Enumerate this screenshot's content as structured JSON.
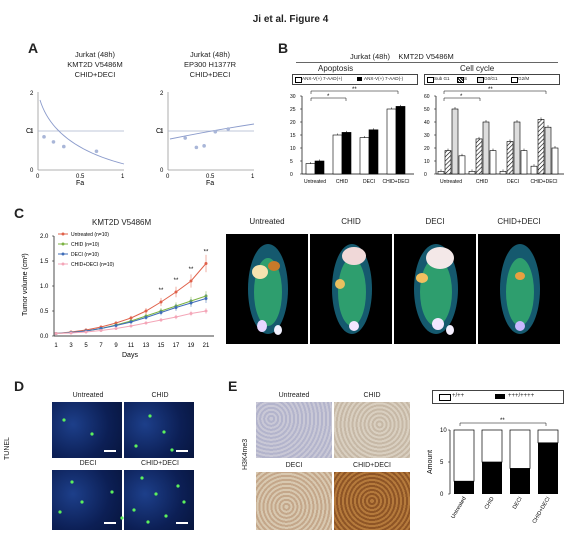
{
  "figure_title": "Ji et al. Figure 4",
  "panels": {
    "A": "A",
    "B": "B",
    "C": "C",
    "D": "D",
    "E": "E"
  },
  "panelA": {
    "left": {
      "line1": "Jurkat (48h)",
      "line2": "KMT2D V5486M",
      "line3": "CHID+DECI",
      "ylabel": "CI",
      "xlabel": "Fa",
      "yticks": [
        "0",
        "1",
        "2"
      ],
      "xticks": [
        "0",
        "0.5",
        "1"
      ]
    },
    "right": {
      "line1": "Jurkat (48h)",
      "line2": "EP300 H1377R",
      "line3": "CHID+DECI",
      "ylabel": "CI",
      "xlabel": "Fa",
      "yticks": [
        "0",
        "1",
        "2"
      ],
      "xticks": [
        "0",
        "0.5",
        "1"
      ]
    }
  },
  "panelB": {
    "header": "Jurkat (48h)    KMT2D V5486M",
    "apoptosis": {
      "title": "Apoptosis",
      "legend": [
        "ANX-V(+) 7-AAD(+)",
        "ANX-V(+) 7-AAD(-)"
      ],
      "yticks": [
        "0",
        "5",
        "10",
        "15",
        "20",
        "25",
        "30"
      ],
      "categories": [
        "Untreated",
        "CHID",
        "DECI",
        "CHID+DECI"
      ],
      "sig": [
        "*",
        "**"
      ]
    },
    "cellcycle": {
      "title": "Cell cycle",
      "legend": [
        "Sub G1",
        "S",
        "G0/G1",
        "G2/M"
      ],
      "yticks": [
        "0",
        "10",
        "20",
        "30",
        "40",
        "50",
        "60"
      ],
      "categories": [
        "Untreated",
        "CHID",
        "DECI",
        "CHID+DECI"
      ],
      "sig": [
        "*",
        "**"
      ]
    }
  },
  "panelC": {
    "title": "KMT2D V5486M",
    "ylabel": "Tumor volume (cm³)",
    "xlabel": "Days",
    "legend": [
      "Untreated (n=10)",
      "CHID (n=10)",
      "DECI (n=10)",
      "CHID+DECI (n=10)"
    ],
    "pet_titles": [
      "Untreated",
      "CHID",
      "DECI",
      "CHID+DECI"
    ]
  },
  "panelD": {
    "ylabel": "TUNEL",
    "titles": [
      "Untreated",
      "CHID",
      "DECI",
      "CHID+DECI"
    ]
  },
  "panelE": {
    "ylabel": "H3K4me3",
    "titles": [
      "Untreated",
      "CHID",
      "DECI",
      "CHID+DECI"
    ],
    "legend": [
      "+/++",
      "+++/++++"
    ],
    "bar_ylabel": "Amount",
    "sig": "**"
  },
  "chart_data": [
    {
      "type": "scatter",
      "title": "Jurkat (48h) KMT2D V5486M CHID+DECI",
      "xlabel": "Fa",
      "ylabel": "CI",
      "xlim": [
        0,
        1
      ],
      "ylim": [
        0,
        2
      ],
      "series": [
        {
          "values": [
            [
              0.07,
              0.85
            ],
            [
              0.18,
              0.72
            ],
            [
              0.3,
              0.6
            ],
            [
              0.68,
              0.48
            ]
          ]
        }
      ]
    },
    {
      "type": "scatter",
      "title": "Jurkat (48h) EP300 H1377R CHID+DECI",
      "xlabel": "Fa",
      "ylabel": "CI",
      "xlim": [
        0,
        1
      ],
      "ylim": [
        0,
        2
      ],
      "series": [
        {
          "values": [
            [
              0.2,
              0.82
            ],
            [
              0.33,
              0.58
            ],
            [
              0.42,
              0.62
            ],
            [
              0.55,
              0.98
            ],
            [
              0.7,
              1.05
            ]
          ]
        }
      ]
    },
    {
      "type": "bar",
      "title": "Apoptosis",
      "categories": [
        "Untreated",
        "CHID",
        "DECI",
        "CHID+DECI"
      ],
      "ylim": [
        0,
        30
      ],
      "series": [
        {
          "name": "ANX-V(+) 7-AAD(+)",
          "values": [
            4,
            15,
            14,
            25
          ]
        },
        {
          "name": "ANX-V(+) 7-AAD(-)",
          "values": [
            5,
            16,
            17,
            26
          ]
        }
      ]
    },
    {
      "type": "bar",
      "title": "Cell cycle",
      "categories": [
        "Untreated",
        "CHID",
        "DECI",
        "CHID+DECI"
      ],
      "ylim": [
        0,
        60
      ],
      "series": [
        {
          "name": "Sub G1",
          "values": [
            2,
            2,
            2,
            6
          ]
        },
        {
          "name": "S",
          "values": [
            18,
            27,
            25,
            42
          ]
        },
        {
          "name": "G0/G1",
          "values": [
            50,
            40,
            40,
            36
          ]
        },
        {
          "name": "G2/M",
          "values": [
            14,
            18,
            18,
            20
          ]
        }
      ]
    },
    {
      "type": "line",
      "title": "KMT2D V5486M",
      "xlabel": "Days",
      "ylabel": "Tumor volume (cm³)",
      "x": [
        1,
        3,
        5,
        7,
        9,
        11,
        13,
        15,
        17,
        19,
        21
      ],
      "ylim": [
        0,
        2
      ],
      "series": [
        {
          "name": "Untreated (n=10)",
          "values": [
            0.05,
            0.08,
            0.12,
            0.18,
            0.26,
            0.36,
            0.5,
            0.68,
            0.88,
            1.1,
            1.45
          ]
        },
        {
          "name": "CHID (n=10)",
          "values": [
            0.05,
            0.07,
            0.1,
            0.15,
            0.22,
            0.3,
            0.4,
            0.5,
            0.6,
            0.7,
            0.8
          ]
        },
        {
          "name": "DECI (n=10)",
          "values": [
            0.05,
            0.07,
            0.1,
            0.15,
            0.21,
            0.28,
            0.37,
            0.47,
            0.57,
            0.66,
            0.75
          ]
        },
        {
          "name": "CHID+DECI (n=10)",
          "values": [
            0.05,
            0.06,
            0.08,
            0.11,
            0.15,
            0.2,
            0.26,
            0.32,
            0.38,
            0.45,
            0.5
          ]
        }
      ],
      "sig": [
        "**",
        "**",
        "**",
        "**"
      ]
    },
    {
      "type": "bar",
      "title": "",
      "categories": [
        "Untreated",
        "CHID",
        "DECI",
        "CHID+DECI"
      ],
      "ylabel": "Amount",
      "ylim": [
        0,
        10
      ],
      "series": [
        {
          "name": "+++/++++",
          "values": [
            2,
            5,
            4,
            8
          ]
        },
        {
          "name": "+/++",
          "values": [
            8,
            5,
            6,
            2
          ]
        }
      ]
    }
  ]
}
